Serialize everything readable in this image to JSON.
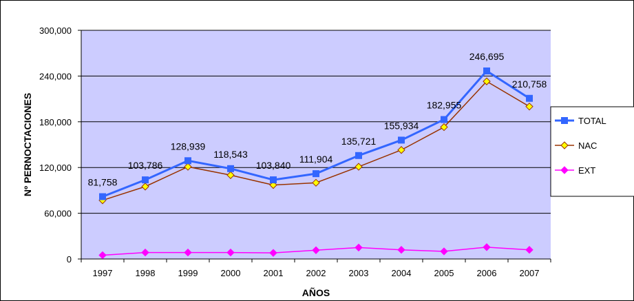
{
  "chart_data": {
    "type": "line",
    "categories": [
      "1997",
      "1998",
      "1999",
      "2000",
      "2001",
      "2002",
      "2003",
      "2004",
      "2005",
      "2006",
      "2007"
    ],
    "xlabel": "AÑOS",
    "ylabel": "Nº PERNOCTACIONES",
    "ylim": [
      0,
      300000
    ],
    "yticks": [
      0,
      60000,
      120000,
      180000,
      240000,
      300000
    ],
    "ytick_labels": [
      "0",
      "60,000",
      "120,000",
      "180,000",
      "240,000",
      "300,000"
    ],
    "grid": true,
    "legend_position": "right",
    "plot_background": "#ccccff",
    "series": [
      {
        "name": "TOTAL",
        "color": "#3366ff",
        "marker_fill": "#3366ff",
        "marker": "square",
        "values": [
          81758,
          103786,
          128939,
          118543,
          103840,
          111904,
          135721,
          155934,
          182955,
          246695,
          210758
        ],
        "data_labels": [
          "81,758",
          "103,786",
          "128,939",
          "118,543",
          "103,840",
          "111,904",
          "135,721",
          "155,934",
          "182,955",
          "246,695",
          "210,758"
        ]
      },
      {
        "name": "NAC",
        "color": "#993300",
        "marker_fill": "#ffff00",
        "marker": "diamond",
        "values": [
          77000,
          95000,
          121000,
          110000,
          97000,
          100000,
          121000,
          143000,
          173000,
          233000,
          200000
        ]
      },
      {
        "name": "EXT",
        "color": "#ff00ff",
        "marker_fill": "#ff00ff",
        "marker": "diamond",
        "values": [
          5000,
          8500,
          8500,
          8500,
          8000,
          11500,
          15000,
          12000,
          10000,
          15500,
          12000
        ]
      }
    ]
  }
}
